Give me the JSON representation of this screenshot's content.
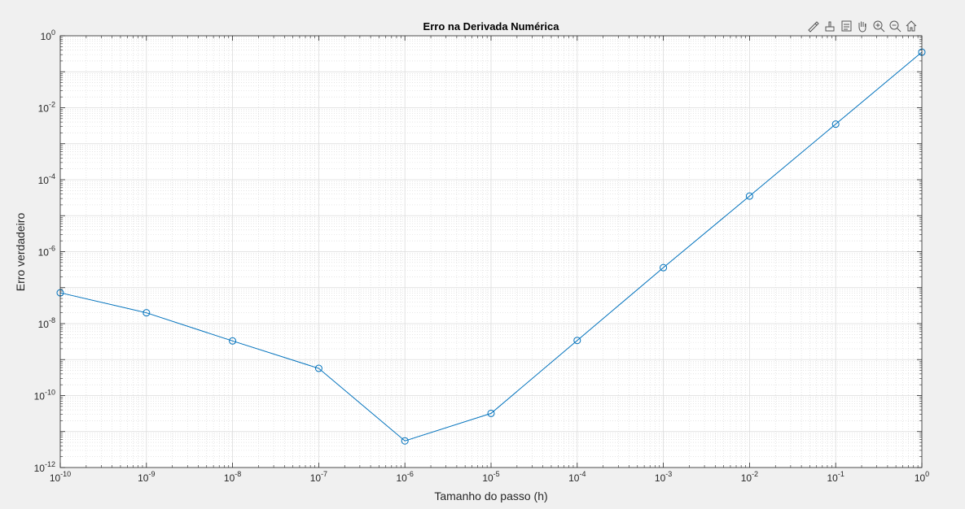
{
  "window": {
    "background": "#f0f0f0"
  },
  "toolbar": {
    "buttons": [
      {
        "name": "edit-plot-icon"
      },
      {
        "name": "brush-icon"
      },
      {
        "name": "data-tips-icon"
      },
      {
        "name": "pan-hand-icon"
      },
      {
        "name": "zoom-in-icon"
      },
      {
        "name": "zoom-out-icon"
      },
      {
        "name": "home-icon"
      }
    ]
  },
  "chart_data": {
    "type": "line",
    "title": "Erro na Derivada Numérica",
    "xlabel": "Tamanho do passo (h)",
    "ylabel": "Erro verdadeiro",
    "xscale": "log",
    "yscale": "log",
    "xlim": [
      1e-10,
      1
    ],
    "ylim": [
      1e-12,
      1
    ],
    "grid": true,
    "minor_grid": true,
    "legend": "none",
    "x_ticks": [
      {
        "base": "10",
        "exp": "-10"
      },
      {
        "base": "10",
        "exp": "-9"
      },
      {
        "base": "10",
        "exp": "-8"
      },
      {
        "base": "10",
        "exp": "-7"
      },
      {
        "base": "10",
        "exp": "-6"
      },
      {
        "base": "10",
        "exp": "-5"
      },
      {
        "base": "10",
        "exp": "-4"
      },
      {
        "base": "10",
        "exp": "-3"
      },
      {
        "base": "10",
        "exp": "-2"
      },
      {
        "base": "10",
        "exp": "-1"
      },
      {
        "base": "10",
        "exp": "0"
      }
    ],
    "y_ticks": [
      {
        "base": "10",
        "exp": "-12"
      },
      {
        "base": "10",
        "exp": "-10"
      },
      {
        "base": "10",
        "exp": "-8"
      },
      {
        "base": "10",
        "exp": "-6"
      },
      {
        "base": "10",
        "exp": "-4"
      },
      {
        "base": "10",
        "exp": "-2"
      },
      {
        "base": "10",
        "exp": "0"
      }
    ],
    "series": [
      {
        "color": "#0072bd",
        "marker": "circle",
        "x": [
          1e-10,
          1e-09,
          1e-08,
          1e-07,
          1e-06,
          1e-05,
          0.0001,
          0.001,
          0.01,
          0.1,
          1
        ],
        "y": [
          7.2e-08,
          2e-08,
          3.3e-09,
          5.7e-10,
          5.5e-12,
          3.2e-11,
          3.4e-09,
          3.6e-07,
          3.5e-05,
          0.0035,
          0.35
        ]
      }
    ]
  }
}
